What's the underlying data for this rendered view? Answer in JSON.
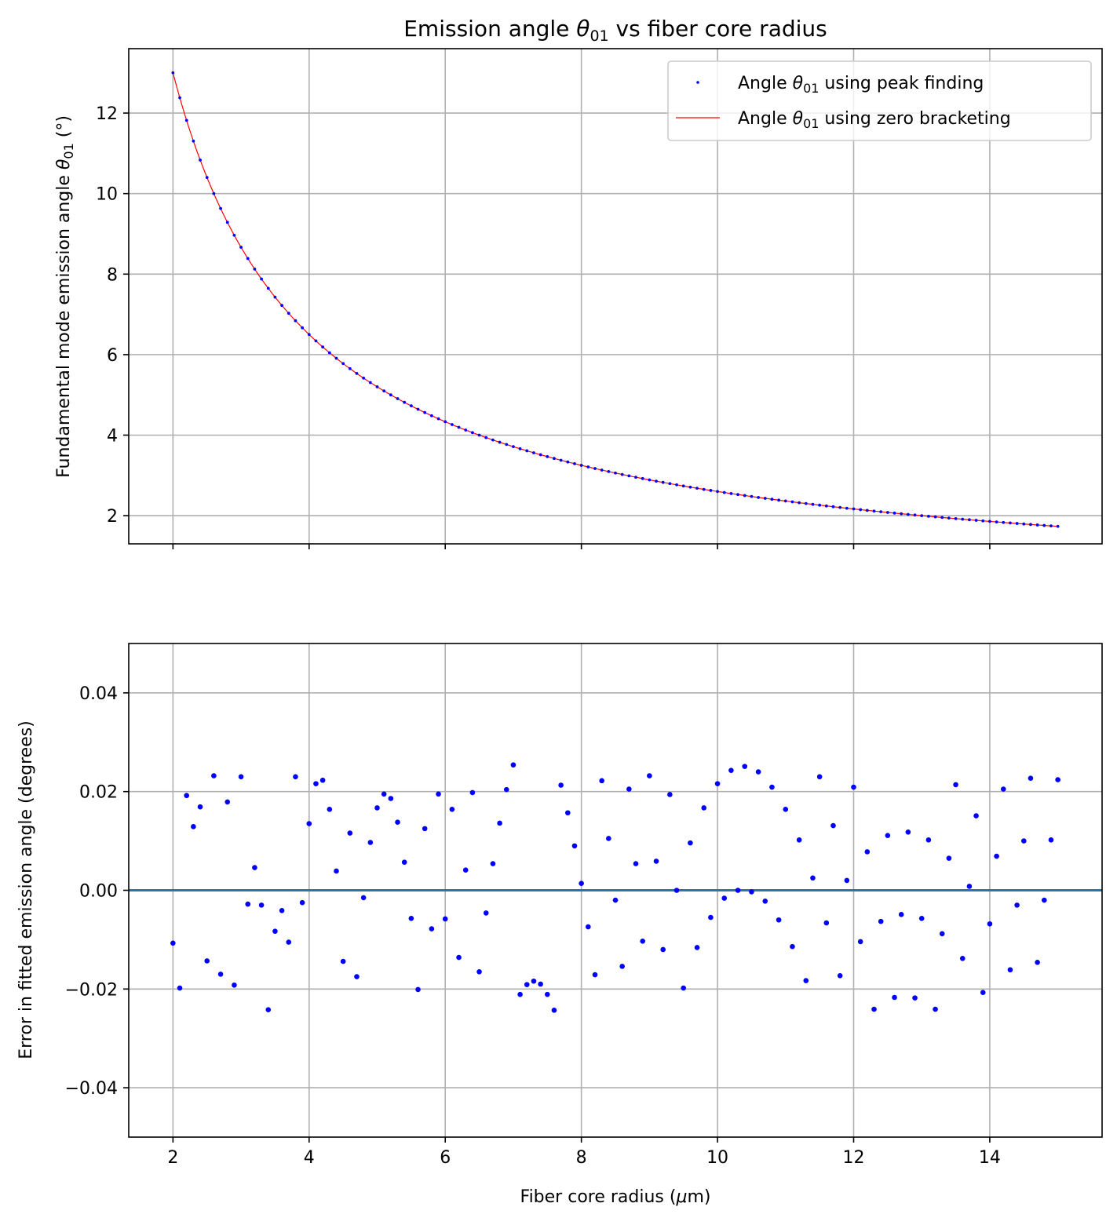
{
  "figure": {
    "title_prefix": "Emission angle ",
    "title_symbol": "θ",
    "title_subscript": "01",
    "title_suffix": " vs fiber core radius"
  },
  "chart_data": [
    {
      "type": "scatter",
      "title": "Emission angle θ01 vs fiber core radius",
      "ylabel": "Fundamental mode emission angle θ01 (°)",
      "xlim": [
        1.35,
        15.65
      ],
      "ylim": [
        1.3,
        13.6
      ],
      "xticks": [
        2,
        4,
        6,
        8,
        10,
        12,
        14
      ],
      "yticks": [
        2,
        4,
        6,
        8,
        10,
        12
      ],
      "grid": true,
      "legend_position": "top-right",
      "x_start": 2.0,
      "x_step": 0.1,
      "x_end": 15.0,
      "curve_constant": 26.0,
      "curve_exponent": 1.0,
      "series": [
        {
          "name": "Angle θ01 using peak finding",
          "label_prefix": "Angle ",
          "label_symbol": "θ",
          "label_subscript": "01",
          "label_suffix": " using peak finding",
          "style": "markers",
          "color": "#0000ff"
        },
        {
          "name": "Angle θ01 using zero bracketing",
          "label_prefix": "Angle ",
          "label_symbol": "θ",
          "label_subscript": "01",
          "label_suffix": " using zero bracketing",
          "style": "line",
          "color": "#ff0000"
        }
      ]
    },
    {
      "type": "scatter",
      "xlabel": "Fiber core radius (μm)",
      "ylabel": "Error in fitted emission angle (degrees)",
      "xlim": [
        1.35,
        15.65
      ],
      "ylim": [
        -0.05,
        0.05
      ],
      "xticks": [
        2,
        4,
        6,
        8,
        10,
        12,
        14
      ],
      "yticks": [
        -0.04,
        -0.02,
        0.0,
        0.02,
        0.04
      ],
      "grid": true,
      "zero_line_color": "#1f77b4",
      "marker_color": "#0000ff",
      "x": [
        2.0,
        2.1,
        2.2,
        2.3,
        2.4,
        2.5,
        2.6,
        2.7,
        2.8,
        2.9,
        3.0,
        3.1,
        3.2,
        3.3,
        3.4,
        3.5,
        3.6,
        3.7,
        3.8,
        3.9,
        4.0,
        4.1,
        4.2,
        4.3,
        4.4,
        4.5,
        4.6,
        4.7,
        4.8,
        4.9,
        5.0,
        5.1,
        5.2,
        5.3,
        5.4,
        5.5,
        5.6,
        5.7,
        5.8,
        5.9,
        6.0,
        6.1,
        6.2,
        6.3,
        6.4,
        6.5,
        6.6,
        6.7,
        6.8,
        6.9,
        7.0,
        7.1,
        7.2,
        7.3,
        7.4,
        7.5,
        7.6,
        7.7,
        7.8,
        7.9,
        8.0,
        8.1,
        8.2,
        8.3,
        8.4,
        8.5,
        8.6,
        8.7,
        8.8,
        8.9,
        9.0,
        9.1,
        9.2,
        9.3,
        9.4,
        9.5,
        9.6,
        9.7,
        9.8,
        9.9,
        10.0,
        10.1,
        10.2,
        10.3,
        10.4,
        10.5,
        10.6,
        10.7,
        10.8,
        10.9,
        11.0,
        11.1,
        11.2,
        11.3,
        11.4,
        11.5,
        11.6,
        11.7,
        11.8,
        11.9,
        12.0,
        12.1,
        12.2,
        12.3,
        12.4,
        12.5,
        12.6,
        12.7,
        12.8,
        12.9,
        13.0,
        13.1,
        13.2,
        13.3,
        13.4,
        13.5,
        13.6,
        13.7,
        13.8,
        13.9,
        14.0,
        14.1,
        14.2,
        14.3,
        14.4,
        14.5,
        14.6,
        14.7,
        14.8,
        14.9,
        15.0
      ],
      "y": [
        -0.0107,
        -0.0198,
        0.0192,
        0.0129,
        0.0169,
        -0.0143,
        0.0232,
        -0.017,
        0.0179,
        -0.0192,
        0.023,
        -0.0028,
        0.0046,
        -0.003,
        -0.0242,
        -0.0083,
        -0.0041,
        -0.0105,
        0.023,
        -0.0025,
        0.0135,
        0.0216,
        0.0223,
        0.0164,
        0.0039,
        -0.0144,
        0.0116,
        -0.0175,
        -0.0015,
        0.0097,
        0.0167,
        0.0195,
        0.0186,
        0.0138,
        0.0057,
        -0.0057,
        -0.0201,
        0.0125,
        -0.0078,
        0.0195,
        -0.0058,
        0.0164,
        -0.0136,
        0.0041,
        0.0198,
        -0.0165,
        -0.0046,
        0.0054,
        0.0136,
        0.0204,
        0.0254,
        -0.0211,
        -0.0191,
        -0.0184,
        -0.019,
        -0.0211,
        -0.0243,
        0.0213,
        0.0157,
        0.009,
        0.0014,
        -0.0074,
        -0.0171,
        0.0222,
        0.0105,
        -0.002,
        -0.0154,
        0.0205,
        0.0054,
        -0.0103,
        0.0232,
        0.0059,
        -0.012,
        0.0194,
        0.0,
        -0.0198,
        0.0096,
        -0.0116,
        0.0167,
        -0.0055,
        0.0216,
        -0.0016,
        0.0243,
        0.0,
        0.0251,
        -0.0003,
        0.024,
        -0.0022,
        0.0209,
        -0.006,
        0.0164,
        -0.0114,
        0.0102,
        -0.0183,
        0.0025,
        0.023,
        -0.0066,
        0.0131,
        -0.0173,
        0.002,
        0.0209,
        -0.0104,
        0.0078,
        -0.0241,
        -0.0063,
        0.0111,
        -0.0217,
        -0.0049,
        0.0118,
        -0.0218,
        -0.0057,
        0.0102,
        -0.0241,
        -0.0088,
        0.0065,
        0.0214,
        -0.0138,
        0.0008,
        0.0151,
        -0.0207,
        -0.0068,
        0.0069,
        0.0205,
        -0.0161,
        -0.003,
        0.01,
        0.0227,
        -0.0146,
        -0.002,
        0.0102,
        0.0224
      ]
    }
  ]
}
